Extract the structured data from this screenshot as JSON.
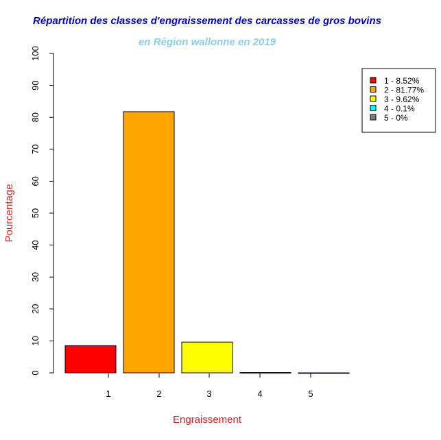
{
  "chart_data": {
    "type": "bar",
    "title": "Répartition des classes d'engraissement des carcasses de gros bovins",
    "subtitle": "en Région wallonne en 2019",
    "xlabel": "Engraissement",
    "ylabel": "Pourcentage",
    "ylim": [
      0,
      100
    ],
    "yticks": [
      "0",
      "10",
      "20",
      "30",
      "40",
      "50",
      "60",
      "70",
      "80",
      "90",
      "100"
    ],
    "categories": [
      "1",
      "2",
      "3",
      "4",
      "5"
    ],
    "values": [
      8.52,
      81.77,
      9.62,
      0.1,
      0
    ],
    "colors": [
      "#ff0000",
      "#ffa500",
      "#ffff00",
      "#00ffff",
      "#808080"
    ],
    "legend": {
      "placement": "top-right",
      "entries": [
        "1 - 8.52%",
        "2 - 81.77%",
        "3 - 9.62%",
        "4 - 0.1%",
        "5 - 0%"
      ]
    },
    "title_color": "#0000cd",
    "subtitle_color": "#87ceeb",
    "label_color": "#e31a1c"
  }
}
